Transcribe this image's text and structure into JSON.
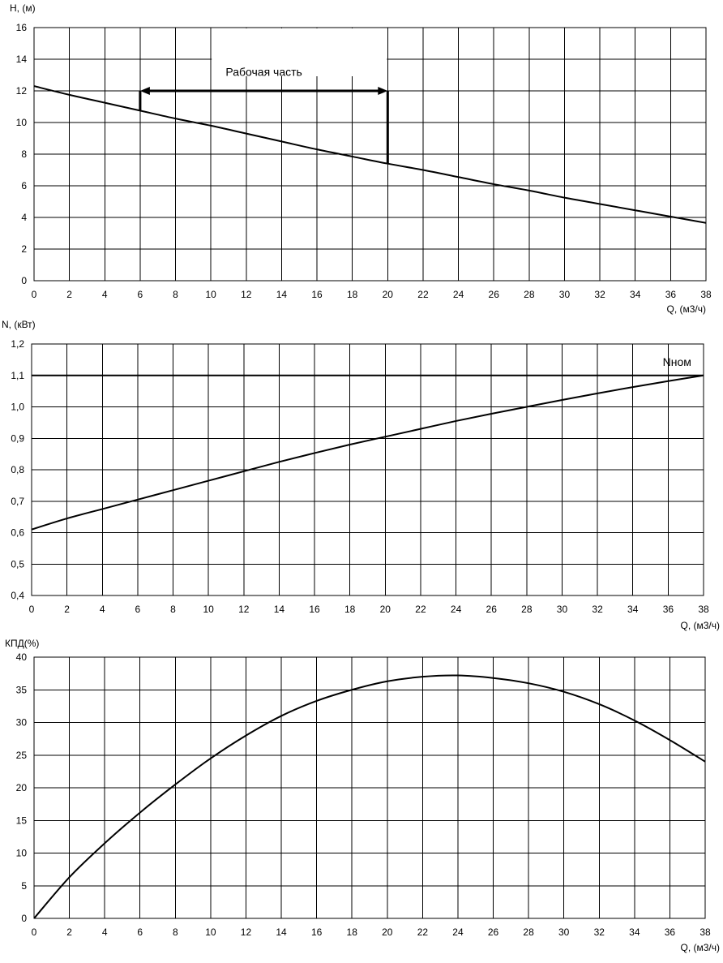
{
  "chart_data": [
    {
      "type": "line",
      "ylabel": "H, (м)",
      "xlabel": "Q, (м3/ч)",
      "xlim": [
        0,
        38
      ],
      "ylim": [
        0,
        16
      ],
      "x_ticks": [
        "0",
        "2",
        "4",
        "6",
        "8",
        "10",
        "12",
        "14",
        "16",
        "18",
        "20",
        "22",
        "24",
        "26",
        "28",
        "30",
        "32",
        "34",
        "36",
        "38"
      ],
      "y_ticks": [
        "0",
        "2",
        "4",
        "6",
        "8",
        "10",
        "12",
        "14",
        "16"
      ],
      "series": [
        {
          "x": [
            0,
            2,
            4,
            6,
            8,
            10,
            12,
            14,
            16,
            18,
            20,
            22,
            24,
            26,
            28,
            30,
            32,
            34,
            36,
            38
          ],
          "values": [
            12.3,
            11.75,
            11.25,
            10.75,
            10.25,
            9.8,
            9.3,
            8.8,
            8.3,
            7.85,
            7.4,
            7.0,
            6.55,
            6.1,
            5.7,
            5.25,
            4.85,
            4.45,
            4.05,
            3.65
          ]
        }
      ],
      "annotations": [
        {
          "text": "Рабочая часть",
          "x": 13,
          "y": 13.2
        }
      ],
      "working_range": {
        "x_start": 6,
        "x_end": 20,
        "y_arrow": 12,
        "y_start": 10.75,
        "y_end": 7.4
      }
    },
    {
      "type": "line",
      "ylabel": "N, (кВт)",
      "xlabel": "Q, (м3/ч)",
      "xlim": [
        0,
        38
      ],
      "ylim": [
        0.4,
        1.2
      ],
      "x_ticks": [
        "0",
        "2",
        "4",
        "6",
        "8",
        "10",
        "12",
        "14",
        "16",
        "18",
        "20",
        "22",
        "24",
        "26",
        "28",
        "30",
        "32",
        "34",
        "36",
        "38"
      ],
      "y_ticks": [
        "0,4",
        "0,5",
        "0,6",
        "0,7",
        "0,8",
        "0,9",
        "1,0",
        "1,1",
        "1,2"
      ],
      "series": [
        {
          "x": [
            0,
            2,
            4,
            6,
            8,
            10,
            12,
            14,
            16,
            18,
            20,
            22,
            24,
            26,
            28,
            30,
            32,
            34,
            36,
            38
          ],
          "values": [
            0.61,
            0.645,
            0.675,
            0.705,
            0.735,
            0.765,
            0.795,
            0.825,
            0.853,
            0.88,
            0.905,
            0.93,
            0.955,
            0.978,
            1.0,
            1.022,
            1.043,
            1.063,
            1.082,
            1.1
          ]
        }
      ],
      "reference_line": {
        "name": "Nном",
        "y": 1.1
      }
    },
    {
      "type": "line",
      "ylabel": "КПД(%)",
      "xlabel": "Q, (м3/ч)",
      "xlim": [
        0,
        38
      ],
      "ylim": [
        0,
        40
      ],
      "x_ticks": [
        "0",
        "2",
        "4",
        "6",
        "8",
        "10",
        "12",
        "14",
        "16",
        "18",
        "20",
        "22",
        "24",
        "26",
        "28",
        "30",
        "32",
        "34",
        "36",
        "38"
      ],
      "y_ticks": [
        "0",
        "5",
        "10",
        "15",
        "20",
        "25",
        "30",
        "35",
        "40"
      ],
      "series": [
        {
          "x": [
            0,
            2,
            4,
            6,
            8,
            10,
            12,
            14,
            16,
            18,
            20,
            22,
            24,
            26,
            28,
            30,
            32,
            34,
            36,
            38
          ],
          "values": [
            0,
            6.3,
            11.5,
            16.2,
            20.5,
            24.5,
            28.0,
            31.0,
            33.3,
            35.0,
            36.3,
            37.0,
            37.2,
            36.8,
            36.0,
            34.7,
            32.8,
            30.3,
            27.3,
            24.0
          ]
        }
      ]
    }
  ]
}
